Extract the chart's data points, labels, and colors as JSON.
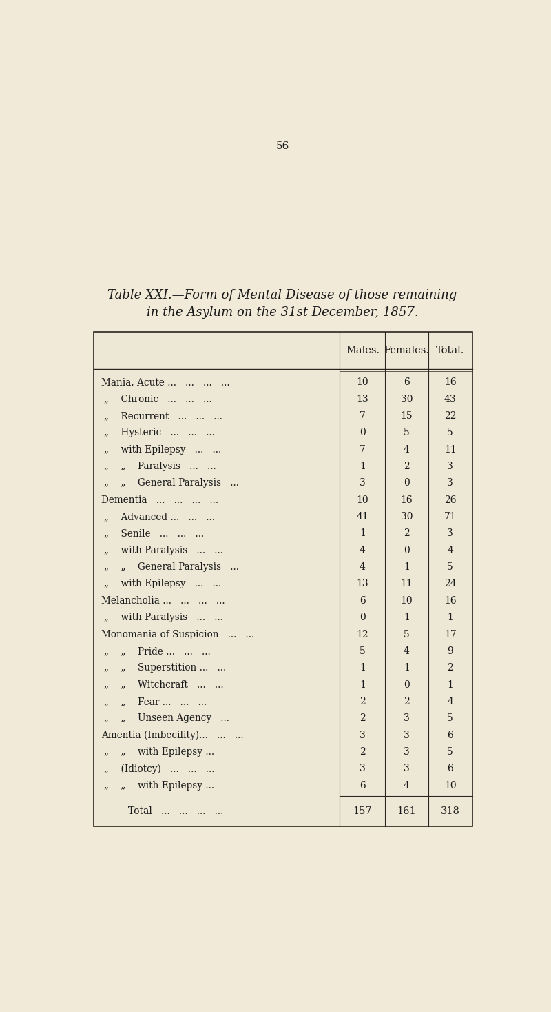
{
  "page_number": "56",
  "title_line1": "Table XXI.—Form of Mental Disease of those remaining",
  "title_line2": "in the Asylum on the 31st December, 1857.",
  "col_headers": [
    "Males.",
    "Females.",
    "Total."
  ],
  "rows": [
    [
      "Mania, Acute ...   ...   ...   ...",
      "10",
      "6",
      "16"
    ],
    [
      "„    Chronic   ...   ...   ...",
      "13",
      "30",
      "43"
    ],
    [
      "„    Recurrent   ...   ...   ...",
      "7",
      "15",
      "22"
    ],
    [
      "„    Hysteric   ...   ...   ...",
      "0",
      "5",
      "5"
    ],
    [
      "„    with Epilepsy   ...   ...",
      "7",
      "4",
      "11"
    ],
    [
      "„    „    Paralysis   ...   ...",
      "1",
      "2",
      "3"
    ],
    [
      "„    „    General Paralysis   ...",
      "3",
      "0",
      "3"
    ],
    [
      "Dementia   ...   ...   ...   ...",
      "10",
      "16",
      "26"
    ],
    [
      "„    Advanced ...   ...   ...",
      "41",
      "30",
      "71"
    ],
    [
      "„    Senile   ...   ...   ...",
      "1",
      "2",
      "3"
    ],
    [
      "„    with Paralysis   ...   ...",
      "4",
      "0",
      "4"
    ],
    [
      "„    „    General Paralysis   ...",
      "4",
      "1",
      "5"
    ],
    [
      "„    with Epilepsy   ...   ...",
      "13",
      "11",
      "24"
    ],
    [
      "Melancholia ...   ...   ...   ...",
      "6",
      "10",
      "16"
    ],
    [
      "„    with Paralysis   ...   ...",
      "0",
      "1",
      "1"
    ],
    [
      "Monomania of Suspicion   ...   ...",
      "12",
      "5",
      "17"
    ],
    [
      "„    „    Pride ...   ...   ...",
      "5",
      "4",
      "9"
    ],
    [
      "„    „    Superstition ...   ...",
      "1",
      "1",
      "2"
    ],
    [
      "„    „    Witchcraft   ...   ...",
      "1",
      "0",
      "1"
    ],
    [
      "„    „    Fear ...   ...   ...",
      "2",
      "2",
      "4"
    ],
    [
      "„    „    Unseen Agency   ...",
      "2",
      "3",
      "5"
    ],
    [
      "Amentia (Imbecility)...   ...   ...",
      "3",
      "3",
      "6"
    ],
    [
      "„    „    with Epilepsy ...",
      "2",
      "3",
      "5"
    ],
    [
      "„    (Idiotcy)   ...   ...   ...",
      "3",
      "3",
      "6"
    ],
    [
      "„    „    with Epilepsy ...",
      "6",
      "4",
      "10"
    ]
  ],
  "total_row": [
    "Total   ...   ...   ...   ...",
    "157",
    "161",
    "318"
  ],
  "bg_color": "#f2ead8",
  "text_color": "#1a1a1a",
  "table_bg": "#ede8d5",
  "line_color": "#2a2520"
}
